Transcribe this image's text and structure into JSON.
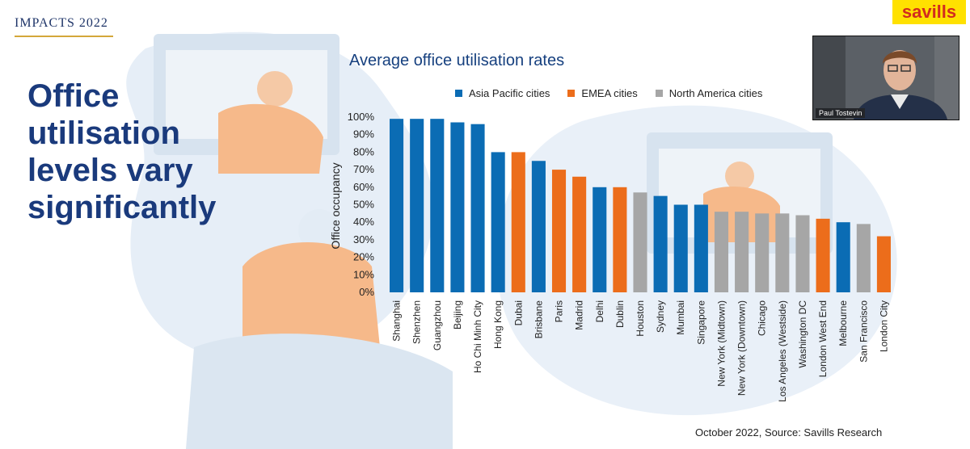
{
  "brand": "IMPACTS 2022",
  "logo": "savills",
  "headline": "Office utilisation levels vary significantly",
  "webcam": {
    "participant_name": "Paul Tostevin"
  },
  "source": "October 2022, Source: Savills Research",
  "colors": {
    "asia": "#0b6cb4",
    "emea": "#ec6d1b",
    "na": "#a6a6a6",
    "title": "#16407f",
    "headline": "#1a3a7c"
  },
  "chart_data": {
    "type": "bar",
    "title": "Average office utilisation rates",
    "ylabel": "Office occupancy",
    "xlabel": "",
    "ylim": [
      0,
      100
    ],
    "y_ticks": [
      "0%",
      "10%",
      "20%",
      "30%",
      "40%",
      "50%",
      "60%",
      "70%",
      "80%",
      "90%",
      "100%"
    ],
    "legend": [
      {
        "name": "Asia Pacific cities",
        "group": "asia"
      },
      {
        "name": "EMEA cities",
        "group": "emea"
      },
      {
        "name": "North America cities",
        "group": "na"
      }
    ],
    "categories": [
      "Shanghai",
      "Shenzhen",
      "Guangzhou",
      "Beijing",
      "Ho Chi Minh City",
      "Hong Kong",
      "Dubai",
      "Brisbane",
      "Paris",
      "Madrid",
      "Delhi",
      "Dublin",
      "Houston",
      "Sydney",
      "Mumbai",
      "Singapore",
      "New York (Midtown)",
      "New York (Downtown)",
      "Chicago",
      "Los Angeles (Westside)",
      "Washington DC",
      "London West End",
      "Melbourne",
      "San Francisco",
      "London City"
    ],
    "values": [
      99,
      99,
      99,
      97,
      96,
      80,
      80,
      75,
      70,
      66,
      60,
      60,
      57,
      55,
      50,
      50,
      46,
      46,
      45,
      45,
      44,
      42,
      40,
      39,
      32
    ],
    "groups": [
      "asia",
      "asia",
      "asia",
      "asia",
      "asia",
      "asia",
      "emea",
      "asia",
      "emea",
      "emea",
      "asia",
      "emea",
      "na",
      "asia",
      "asia",
      "asia",
      "na",
      "na",
      "na",
      "na",
      "na",
      "emea",
      "asia",
      "na",
      "emea"
    ]
  }
}
